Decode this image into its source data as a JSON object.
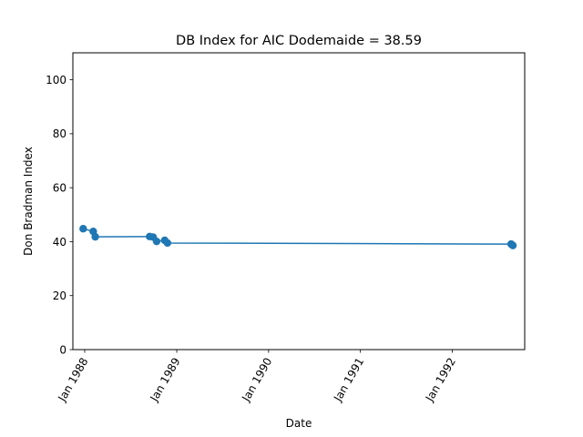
{
  "chart_data": {
    "type": "line",
    "title": "DB Index for AIC Dodemaide = 38.59",
    "xlabel": "Date",
    "ylabel": "Don Bradman Index",
    "xlim": [
      "1987-11-15",
      "1992-10-15"
    ],
    "ylim": [
      0,
      110
    ],
    "x_ticks": [
      {
        "date": "1988-01-01",
        "label": "Jan 1988"
      },
      {
        "date": "1989-01-01",
        "label": "Jan 1989"
      },
      {
        "date": "1990-01-01",
        "label": "Jan 1990"
      },
      {
        "date": "1991-01-01",
        "label": "Jan 1991"
      },
      {
        "date": "1992-01-01",
        "label": "Jan 1992"
      }
    ],
    "y_ticks": [
      0,
      20,
      40,
      60,
      80,
      100
    ],
    "grid": false,
    "color": "#1f77b4",
    "series": [
      {
        "points": [
          {
            "x": "1987-12-26",
            "y": 44.8
          },
          {
            "x": "1988-02-04",
            "y": 43.8
          },
          {
            "x": "1988-02-12",
            "y": 41.8
          },
          {
            "x": "1988-09-15",
            "y": 41.9
          },
          {
            "x": "1988-09-29",
            "y": 41.7
          },
          {
            "x": "1988-10-13",
            "y": 40.1
          },
          {
            "x": "1988-11-14",
            "y": 40.5
          },
          {
            "x": "1988-11-25",
            "y": 39.5
          },
          {
            "x": "1992-08-22",
            "y": 39.1
          },
          {
            "x": "1992-08-29",
            "y": 38.59
          }
        ]
      }
    ]
  }
}
